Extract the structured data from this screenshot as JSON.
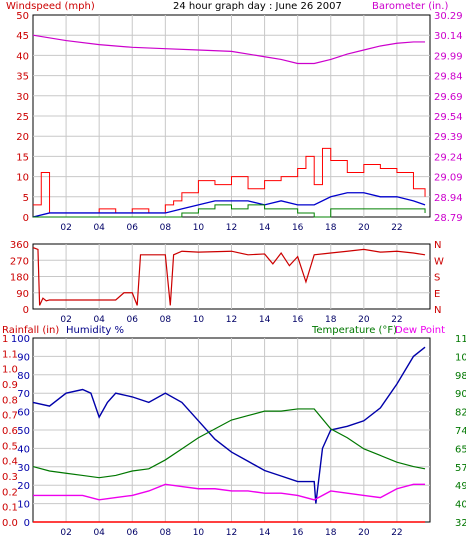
{
  "header": {
    "left_label": "Windspeed (mph)",
    "title": "24 hour graph day : June 26 2007",
    "right_label": "Barometer (in.)"
  },
  "panel3_header": {
    "rainfall_label": "Rainfall (in)",
    "humidity_label": "Humidity %",
    "temperature_label": "Temperature (°F)",
    "dewpoint_label": "Dew Point"
  },
  "colors": {
    "wind": "#ff0000",
    "gust": "#cc0000",
    "avg_wind": "#0000cc",
    "wind_green": "#008000",
    "barometer": "#cc00cc",
    "direction": "#cc0000",
    "humidity": "#0000aa",
    "temperature": "#007700",
    "dewpoint": "#ee00ee",
    "rainfall": "#ff0000",
    "grid": "#c8c8c8",
    "frame": "#000000"
  },
  "chart_data": [
    {
      "type": "line",
      "panel": "wind_barometer",
      "x_ticks": [
        "02",
        "04",
        "06",
        "08",
        "10",
        "12",
        "14",
        "16",
        "18",
        "20",
        "22"
      ],
      "left_axis": {
        "label": "Windspeed (mph)",
        "ticks": [
          "0",
          "5",
          "10",
          "15",
          "20",
          "25",
          "30",
          "35",
          "40",
          "45",
          "50"
        ],
        "ylim": [
          0,
          50
        ]
      },
      "right_axis": {
        "label": "Barometer (in.)",
        "ticks": [
          "28.79",
          "28.94",
          "29.09",
          "29.24",
          "29.39",
          "29.54",
          "29.69",
          "29.84",
          "29.99",
          "30.14",
          "30.29"
        ],
        "ylim": [
          28.79,
          30.29
        ]
      },
      "grid": true,
      "series": [
        {
          "name": "Barometer",
          "axis": "right",
          "x": [
            0,
            2,
            4,
            6,
            8,
            10,
            12,
            14,
            15,
            16,
            17,
            18,
            19,
            20,
            21,
            22,
            23,
            23.7
          ],
          "values": [
            30.14,
            30.1,
            30.07,
            30.05,
            30.04,
            30.03,
            30.02,
            29.98,
            29.96,
            29.93,
            29.93,
            29.96,
            30.0,
            30.03,
            30.06,
            30.08,
            30.09,
            30.09
          ]
        },
        {
          "key": "wind_gust",
          "axis": "left",
          "x": [
            0,
            0.5,
            1,
            2,
            3,
            4,
            5,
            6,
            7,
            8,
            8.5,
            9,
            10,
            11,
            12,
            13,
            14,
            15,
            16,
            16.5,
            17,
            17.5,
            18,
            19,
            20,
            21,
            22,
            23,
            23.7
          ],
          "values": [
            3,
            11,
            1,
            1,
            1,
            2,
            1,
            2,
            1,
            3,
            4,
            6,
            9,
            8,
            10,
            7,
            9,
            10,
            12,
            15,
            8,
            17,
            14,
            11,
            13,
            12,
            11,
            7,
            5
          ]
        },
        {
          "key": "wind_speed",
          "axis": "left",
          "x": [
            0,
            1,
            2,
            4,
            6,
            8,
            9,
            10,
            11,
            12,
            13,
            14,
            15,
            16,
            17,
            18,
            19,
            20,
            21,
            22,
            23,
            23.7
          ],
          "values": [
            0,
            1,
            1,
            1,
            1,
            1,
            2,
            3,
            4,
            4,
            4,
            3,
            4,
            3,
            3,
            5,
            6,
            6,
            5,
            5,
            4,
            3
          ]
        },
        {
          "key": "wind_green",
          "axis": "left",
          "x": [
            0,
            2,
            4,
            6,
            8,
            9,
            10,
            11,
            12,
            13,
            14,
            15,
            16,
            17,
            18,
            19,
            20,
            21,
            22,
            23,
            23.7
          ],
          "values": [
            0,
            0,
            0,
            0,
            0,
            1,
            2,
            3,
            2,
            3,
            2,
            2,
            1,
            0,
            2,
            2,
            2,
            2,
            2,
            2,
            1
          ]
        }
      ]
    },
    {
      "type": "line",
      "panel": "wind_direction",
      "x_ticks": [
        "02",
        "04",
        "06",
        "08",
        "10",
        "12",
        "14",
        "16",
        "18",
        "20",
        "22"
      ],
      "left_axis": {
        "ticks": [
          "0",
          "90",
          "180",
          "270",
          "360"
        ],
        "ylim": [
          0,
          360
        ]
      },
      "right_axis": {
        "ticks": [
          "N",
          "E",
          "S",
          "W",
          "N"
        ]
      },
      "grid": true,
      "series": [
        {
          "key": "wind_direction",
          "x": [
            0,
            0.3,
            0.4,
            0.6,
            0.8,
            1,
            3,
            5,
            5.5,
            6,
            6.3,
            6.5,
            8,
            8.3,
            8.5,
            9,
            10,
            12,
            13,
            14,
            14.5,
            15,
            15.5,
            16,
            16.5,
            17,
            18,
            19,
            20,
            21,
            22,
            23,
            23.7
          ],
          "values": [
            340,
            330,
            20,
            60,
            45,
            50,
            50,
            50,
            90,
            90,
            20,
            300,
            300,
            20,
            300,
            320,
            315,
            320,
            300,
            305,
            250,
            310,
            240,
            290,
            150,
            300,
            310,
            320,
            330,
            315,
            320,
            310,
            300
          ]
        }
      ]
    },
    {
      "type": "line",
      "panel": "humidity_temperature",
      "x_ticks": [
        "02",
        "04",
        "06",
        "08",
        "10",
        "12",
        "14",
        "16",
        "18",
        "20",
        "22"
      ],
      "left_axis_outer": {
        "label": "Rainfall (in)",
        "ticks": [
          "0.0",
          "0.1",
          "0.2",
          "0.3",
          "0.4",
          "0.5",
          "0.6",
          "0.7",
          "0.8",
          "0.9",
          "1.0",
          "1.1",
          "1"
        ],
        "ylim": [
          0,
          1.2
        ]
      },
      "left_axis_inner": {
        "label": "Humidity %",
        "ticks": [
          "0",
          "10",
          "20",
          "30",
          "40",
          "50",
          "60",
          "70",
          "80",
          "90",
          "100"
        ],
        "ylim": [
          0,
          100
        ]
      },
      "right_axis": {
        "label": "Temperature (°F)",
        "ticks": [
          "32",
          "40",
          "49",
          "57",
          "65",
          "74",
          "82",
          "90",
          "98",
          "107",
          "115"
        ],
        "ylim": [
          32,
          115
        ]
      },
      "grid": true,
      "series": [
        {
          "name": "Humidity %",
          "axis": "left_inner",
          "x": [
            0,
            1,
            2,
            3,
            3.5,
            4,
            4.5,
            5,
            6,
            7,
            8,
            9,
            10,
            11,
            12,
            13,
            14,
            15,
            16,
            17,
            17.1,
            17.5,
            18,
            19,
            20,
            21,
            22,
            23,
            23.7
          ],
          "values": [
            65,
            63,
            70,
            72,
            70,
            57,
            65,
            70,
            68,
            65,
            70,
            65,
            55,
            45,
            38,
            33,
            28,
            25,
            22,
            22,
            10,
            40,
            50,
            52,
            55,
            62,
            75,
            90,
            95
          ]
        },
        {
          "name": "Temperature (°F)",
          "axis": "right",
          "x": [
            0,
            1,
            2,
            3,
            4,
            5,
            6,
            7,
            8,
            9,
            10,
            11,
            12,
            13,
            14,
            15,
            16,
            17,
            18,
            19,
            20,
            21,
            22,
            23,
            23.7
          ],
          "values": [
            57,
            55,
            54,
            53,
            52,
            53,
            55,
            56,
            60,
            65,
            70,
            74,
            78,
            80,
            82,
            82,
            83,
            83,
            74,
            70,
            65,
            62,
            59,
            57,
            56
          ]
        },
        {
          "name": "Dew Point",
          "axis": "right",
          "x": [
            0,
            1,
            2,
            3,
            4,
            5,
            6,
            7,
            8,
            9,
            10,
            11,
            12,
            13,
            14,
            15,
            16,
            17,
            18,
            19,
            20,
            21,
            22,
            23,
            23.7
          ],
          "values": [
            44,
            44,
            44,
            44,
            42,
            43,
            44,
            46,
            49,
            48,
            47,
            47,
            46,
            46,
            45,
            45,
            44,
            42,
            46,
            45,
            44,
            43,
            47,
            49,
            49
          ]
        },
        {
          "name": "Rainfall (in)",
          "axis": "left_outer",
          "x": [
            0,
            23.7
          ],
          "values": [
            0.0,
            0.0
          ]
        }
      ]
    }
  ]
}
